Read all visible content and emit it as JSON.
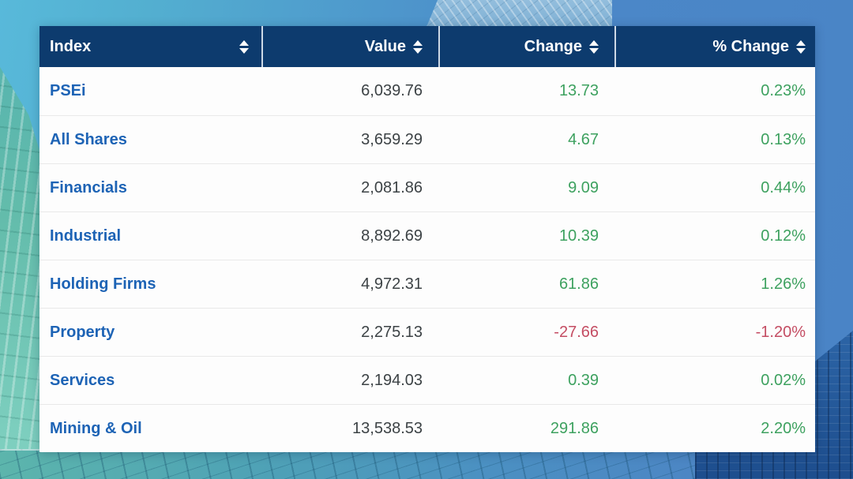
{
  "colors": {
    "header_bg": "#0d3b6e",
    "link_blue": "#1d63b5",
    "positive_green": "#3da15f",
    "negative_red": "#c44d63",
    "value_text": "#3c4245"
  },
  "table": {
    "columns": [
      {
        "label": "Index",
        "align": "left",
        "sortable": true
      },
      {
        "label": "Value",
        "align": "right",
        "sortable": true
      },
      {
        "label": "Change",
        "align": "right",
        "sortable": true
      },
      {
        "label": "% Change",
        "align": "right",
        "sortable": true
      }
    ],
    "rows": [
      {
        "index": "PSEi",
        "value": "6,039.76",
        "change": "13.73",
        "pct_change": "0.23%",
        "direction": "up"
      },
      {
        "index": "All Shares",
        "value": "3,659.29",
        "change": "4.67",
        "pct_change": "0.13%",
        "direction": "up"
      },
      {
        "index": "Financials",
        "value": "2,081.86",
        "change": "9.09",
        "pct_change": "0.44%",
        "direction": "up"
      },
      {
        "index": "Industrial",
        "value": "8,892.69",
        "change": "10.39",
        "pct_change": "0.12%",
        "direction": "up"
      },
      {
        "index": "Holding Firms",
        "value": "4,972.31",
        "change": "61.86",
        "pct_change": "1.26%",
        "direction": "up"
      },
      {
        "index": "Property",
        "value": "2,275.13",
        "change": "-27.66",
        "pct_change": "-1.20%",
        "direction": "down"
      },
      {
        "index": "Services",
        "value": "2,194.03",
        "change": "0.39",
        "pct_change": "0.02%",
        "direction": "up"
      },
      {
        "index": "Mining & Oil",
        "value": "13,538.53",
        "change": "291.86",
        "pct_change": "2.20%",
        "direction": "up"
      }
    ]
  }
}
